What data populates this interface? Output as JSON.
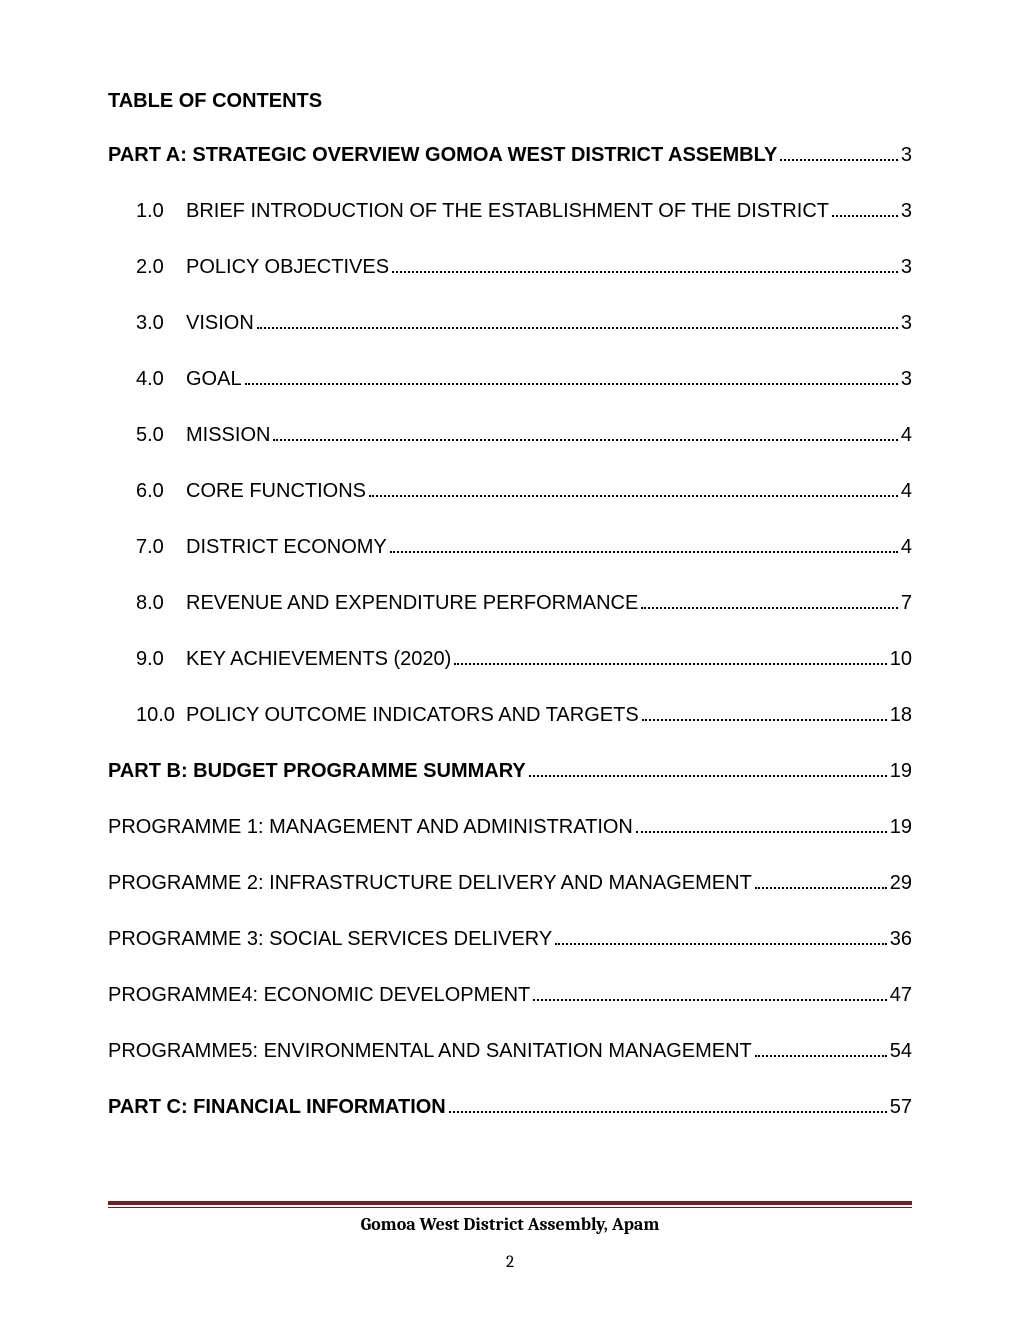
{
  "toc_title": "TABLE OF CONTENTS",
  "entries": [
    {
      "number": "",
      "text": "PART A: STRATEGIC OVERVIEW GOMOA WEST DISTRICT ASSEMBLY",
      "page": "3",
      "bold": true,
      "indent": 0
    },
    {
      "number": "1.0",
      "text": "BRIEF INTRODUCTION OF THE ESTABLISHMENT OF THE DISTRICT",
      "page": "3",
      "bold": false,
      "indent": 1
    },
    {
      "number": "2.0",
      "text": "POLICY OBJECTIVES",
      "page": "3",
      "bold": false,
      "indent": 1
    },
    {
      "number": "3.0",
      "text": "VISION",
      "page": "3",
      "bold": false,
      "indent": 1
    },
    {
      "number": "4.0",
      "text": "GOAL",
      "page": "3",
      "bold": false,
      "indent": 1
    },
    {
      "number": "5.0",
      "text": "MISSION",
      "page": "4",
      "bold": false,
      "indent": 1
    },
    {
      "number": "6.0",
      "text": "CORE FUNCTIONS",
      "page": "4",
      "bold": false,
      "indent": 1
    },
    {
      "number": "7.0",
      "text": "DISTRICT ECONOMY",
      "page": "4",
      "bold": false,
      "indent": 1
    },
    {
      "number": "8.0",
      "text": "REVENUE AND EXPENDITURE PERFORMANCE",
      "page": "7",
      "bold": false,
      "indent": 1
    },
    {
      "number": "9.0",
      "text": "KEY ACHIEVEMENTS (2020)",
      "page": "10",
      "bold": false,
      "indent": 1
    },
    {
      "number": "10.0",
      "text": "POLICY OUTCOME INDICATORS AND TARGETS",
      "page": "18",
      "bold": false,
      "indent": 1
    },
    {
      "number": "",
      "text": "PART B: BUDGET PROGRAMME SUMMARY",
      "page": "19",
      "bold": true,
      "indent": 0
    },
    {
      "number": "",
      "text": "PROGRAMME 1: MANAGEMENT AND ADMINISTRATION",
      "page": "19",
      "bold": false,
      "indent": 0
    },
    {
      "number": "",
      "text": "PROGRAMME 2: INFRASTRUCTURE DELIVERY AND MANAGEMENT",
      "page": "29",
      "bold": false,
      "indent": 0
    },
    {
      "number": "",
      "text": "PROGRAMME 3: SOCIAL SERVICES DELIVERY",
      "page": "36",
      "bold": false,
      "indent": 0
    },
    {
      "number": "",
      "text": "PROGRAMME4: ECONOMIC DEVELOPMENT",
      "page": "47",
      "bold": false,
      "indent": 0
    },
    {
      "number": "",
      "text": "PROGRAMME5: ENVIRONMENTAL AND SANITATION MANAGEMENT",
      "page": "54",
      "bold": false,
      "indent": 0
    },
    {
      "number": "",
      "text": "PART C: FINANCIAL INFORMATION",
      "page": "57",
      "bold": true,
      "indent": 0
    }
  ],
  "footer_text": "Gomoa West District Assembly, Apam",
  "page_number": "2",
  "colors": {
    "text": "#000000",
    "background": "#ffffff",
    "footer_line": "#7a1f1f"
  },
  "typography": {
    "body_font": "Arial",
    "body_size_pt": 15,
    "footer_font": "Cambria",
    "footer_size_pt": 13
  }
}
